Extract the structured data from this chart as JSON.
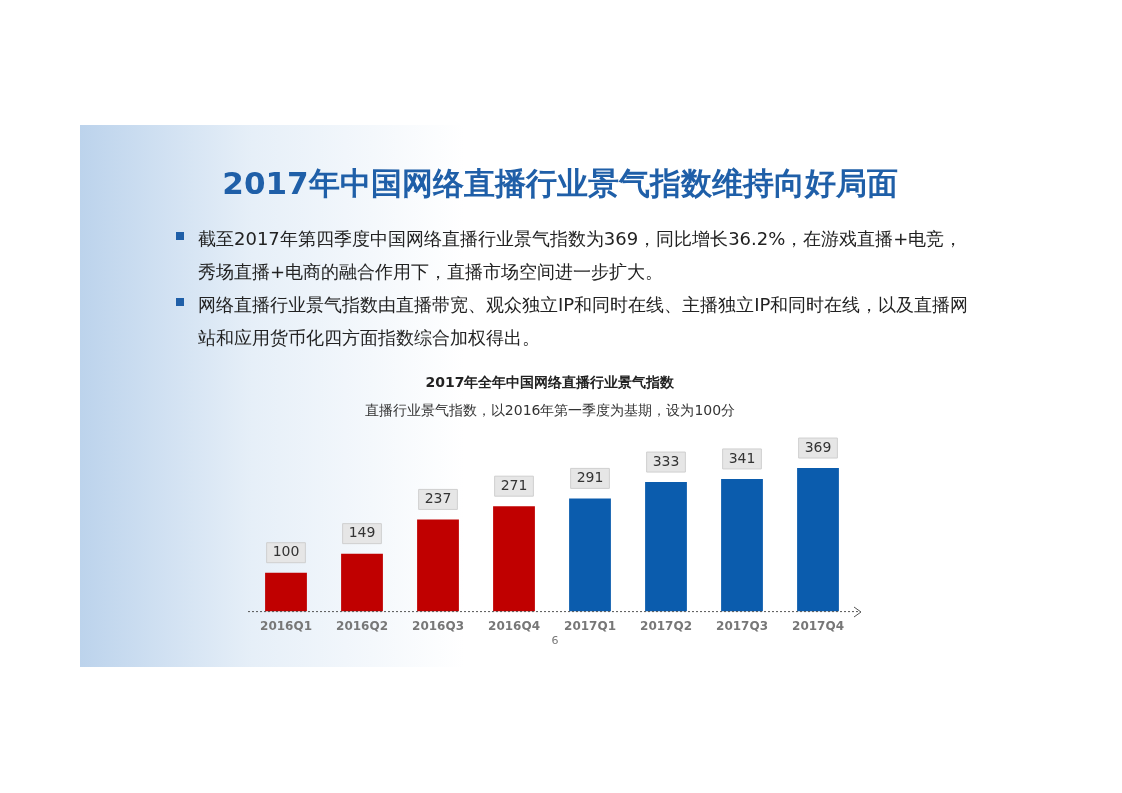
{
  "chart_data": {
    "type": "bar",
    "title": "2017年全年中国网络直播行业景气指数",
    "subtitle": "直播行业景气指数，以2016年第一季度为基期，设为100分",
    "annotations": [
      "2017年中国网络直播行业景气指数维持向好局面",
      "截至2017年第四季度中国网络直播行业景气指数为369，同比增长36.2%，在游戏直播+电竞，秀场直播+电商的融合作用下，直播市场空间进一步扩大。",
      "网络直播行业景气指数由直播带宽、观众独立IP和同时在线、主播独立IP和同时在线，以及直播网站和应用货币化四方面指数综合加权得出。",
      "6"
    ],
    "categories": [
      "2016Q1",
      "2016Q2",
      "2016Q3",
      "2016Q4",
      "2017Q1",
      "2017Q2",
      "2017Q3",
      "2017Q4"
    ],
    "values": [
      100,
      149,
      237,
      271,
      291,
      333,
      341,
      369
    ],
    "colors": [
      "#c00000",
      "#c00000",
      "#c00000",
      "#c00000",
      "#0b5cad",
      "#0b5cad",
      "#0b5cad",
      "#0b5cad"
    ],
    "data_labels": true,
    "grid": false,
    "legend": false
  }
}
